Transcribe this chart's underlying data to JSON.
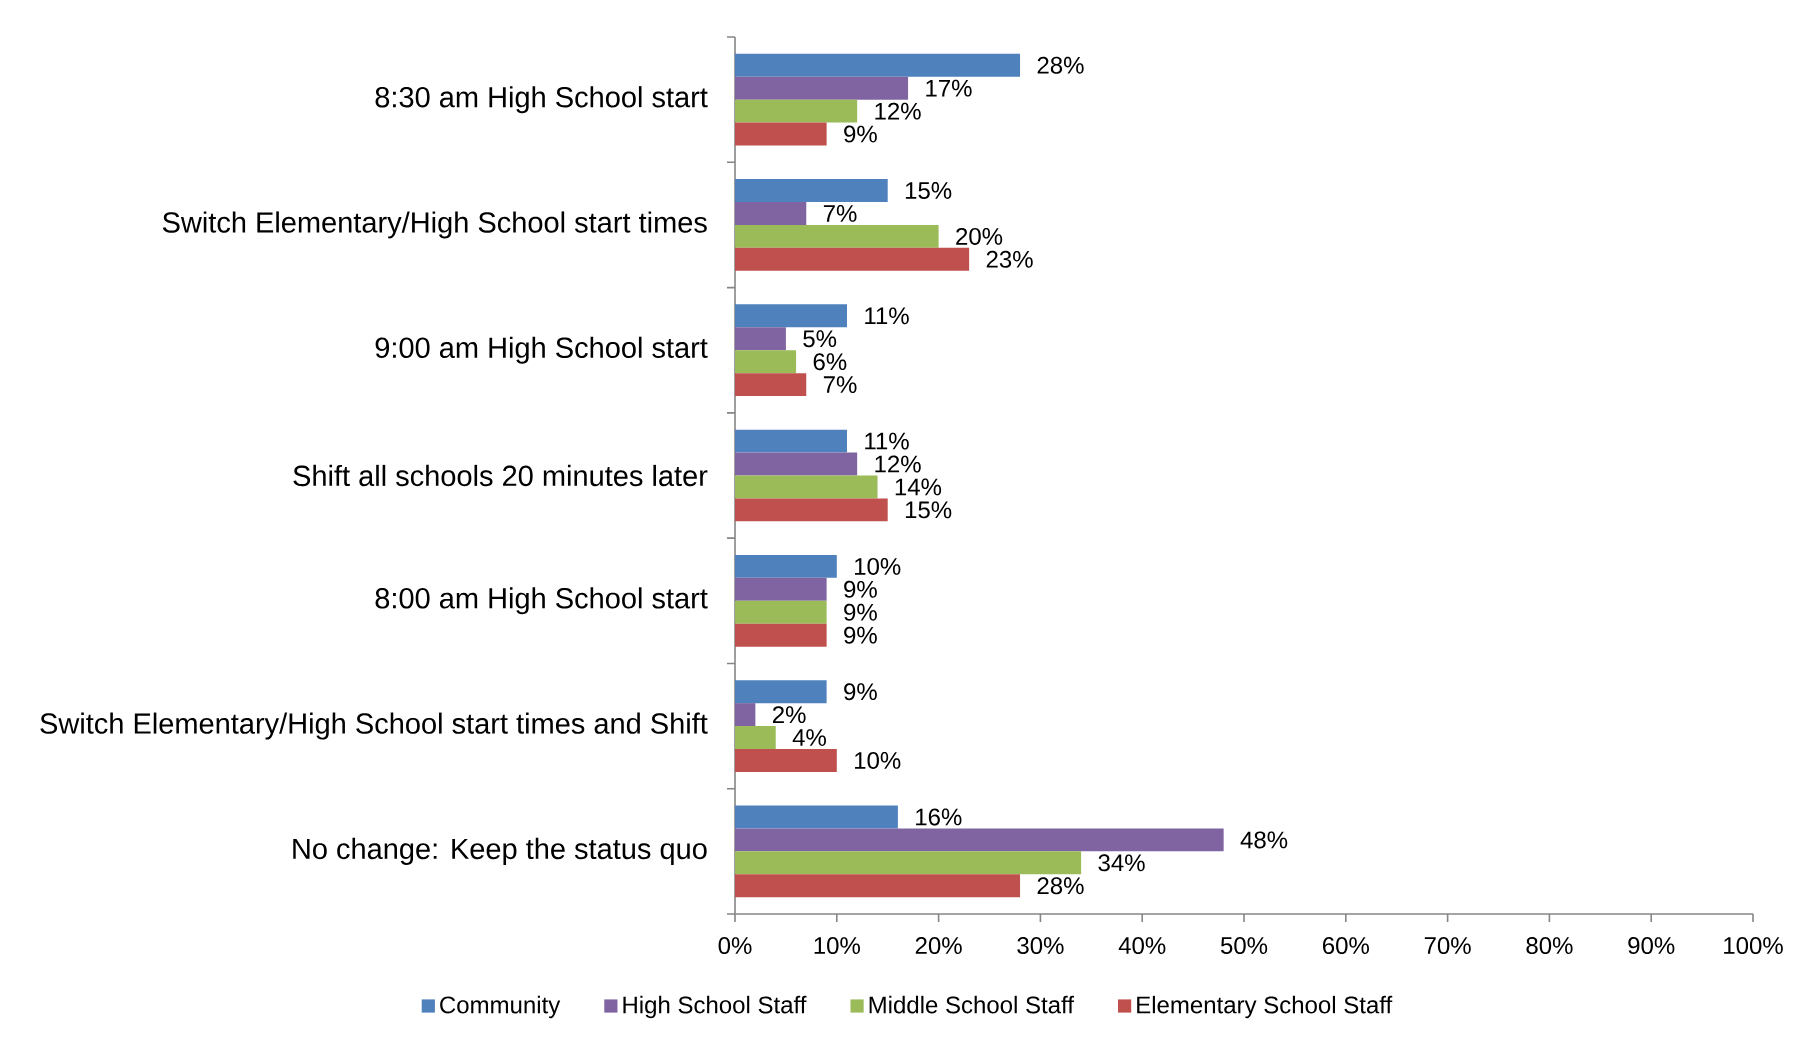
{
  "chart_data": {
    "type": "bar",
    "orientation": "horizontal",
    "categories": [
      "8:30 am High School start",
      "Switch Elementary/High School start times",
      "9:00 am High School start",
      "Shift all schools 20 minutes later",
      "8:00 am High School start",
      "Switch Elementary/High School start times and Shift",
      "No change: Keep the status quo"
    ],
    "series": [
      {
        "name": "Community",
        "color": "#4f81bd",
        "values": [
          28,
          15,
          11,
          11,
          10,
          9,
          16
        ],
        "value_labels": [
          "28%",
          "15%",
          "11%",
          "11%",
          "10%",
          "9%",
          "16%"
        ]
      },
      {
        "name": "High School Staff",
        "color": "#8064a2",
        "values": [
          17,
          7,
          5,
          12,
          9,
          2,
          48
        ],
        "value_labels": [
          "17%",
          "7%",
          "5%",
          "12%",
          "9%",
          "2%",
          "48%"
        ]
      },
      {
        "name": "Middle School Staff",
        "color": "#9bbb59",
        "values": [
          12,
          20,
          6,
          14,
          9,
          4,
          34
        ],
        "value_labels": [
          "12%",
          "20%",
          "6%",
          "14%",
          "9%",
          "4%",
          "34%"
        ]
      },
      {
        "name": "Elementary School Staff",
        "color": "#c0504d",
        "values": [
          9,
          23,
          7,
          15,
          9,
          10,
          28
        ],
        "value_labels": [
          "9%",
          "23%",
          "7%",
          "15%",
          "9%",
          "10%",
          "28%"
        ]
      }
    ],
    "xlim": [
      0,
      100
    ],
    "xticks": [
      {
        "value": 0,
        "label": "0%"
      },
      {
        "value": 10,
        "label": "10%"
      },
      {
        "value": 20,
        "label": "20%"
      },
      {
        "value": 30,
        "label": "30%"
      },
      {
        "value": 40,
        "label": "40%"
      },
      {
        "value": 50,
        "label": "50%"
      },
      {
        "value": 60,
        "label": "60%"
      },
      {
        "value": 70,
        "label": "70%"
      },
      {
        "value": 80,
        "label": "80%"
      },
      {
        "value": 90,
        "label": "90%"
      },
      {
        "value": 100,
        "label": "100%"
      }
    ],
    "legend": "bottom"
  }
}
